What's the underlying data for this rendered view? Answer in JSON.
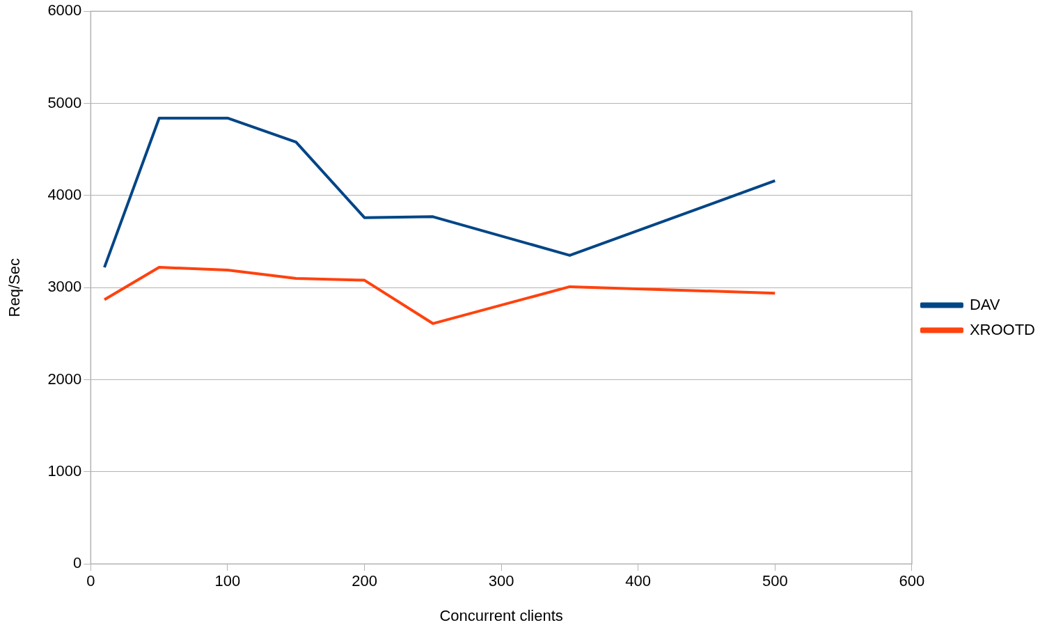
{
  "chart_data": {
    "type": "line",
    "xlabel": "Concurrent clients",
    "ylabel": "Req/Sec",
    "x": [
      10,
      50,
      100,
      150,
      200,
      250,
      350,
      500
    ],
    "series": [
      {
        "name": "DAV",
        "color": "#004586",
        "values": [
          3220,
          4840,
          4840,
          4580,
          3760,
          3770,
          3350,
          4160
        ]
      },
      {
        "name": "XROOTD",
        "color": "#ff420e",
        "values": [
          2870,
          3220,
          3190,
          3100,
          3080,
          2610,
          3010,
          2940
        ]
      }
    ],
    "xlim": [
      0,
      600
    ],
    "xticks": [
      0,
      100,
      200,
      300,
      400,
      500,
      600
    ],
    "ylim": [
      0,
      6000
    ],
    "yticks": [
      0,
      1000,
      2000,
      3000,
      4000,
      5000,
      6000
    ],
    "grid": "y",
    "legend": "right",
    "marker": "none",
    "line_style": "solid"
  }
}
